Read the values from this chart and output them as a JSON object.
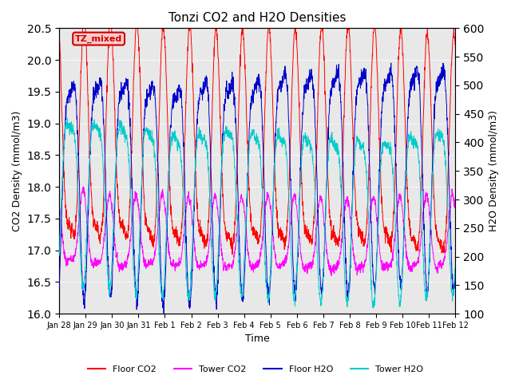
{
  "title": "Tonzi CO2 and H2O Densities",
  "xlabel": "Time",
  "ylabel_left": "CO2 Density (mmol/m3)",
  "ylabel_right": "H2O Density (mmol/m3)",
  "ylim_left": [
    16.0,
    20.5
  ],
  "ylim_right": [
    100,
    600
  ],
  "yticks_left": [
    16.0,
    16.5,
    17.0,
    17.5,
    18.0,
    18.5,
    19.0,
    19.5,
    20.0,
    20.5
  ],
  "yticks_right": [
    100,
    150,
    200,
    250,
    300,
    350,
    400,
    450,
    500,
    550,
    600
  ],
  "colors": {
    "floor_co2": "#ff0000",
    "tower_co2": "#ff00ff",
    "floor_h2o": "#0000cc",
    "tower_h2o": "#00cccc"
  },
  "legend_labels": [
    "Floor CO2",
    "Tower CO2",
    "Floor H2O",
    "Tower H2O"
  ],
  "annotation_text": "TZ_mixed",
  "annotation_color": "#cc0000",
  "annotation_bg": "#ffcccc",
  "axes_bg": "#e8e8e8",
  "n_points": 2000,
  "period_days": 1.0,
  "co2_floor_mean": 18.4,
  "co2_floor_amp": 1.65,
  "co2_tower_mean": 17.15,
  "co2_tower_amp": 0.55,
  "h2o_floor_mean": 370,
  "h2o_floor_amp": 185,
  "h2o_tower_mean": 310,
  "h2o_tower_amp": 140,
  "figsize": [
    6.4,
    4.8
  ],
  "dpi": 100
}
